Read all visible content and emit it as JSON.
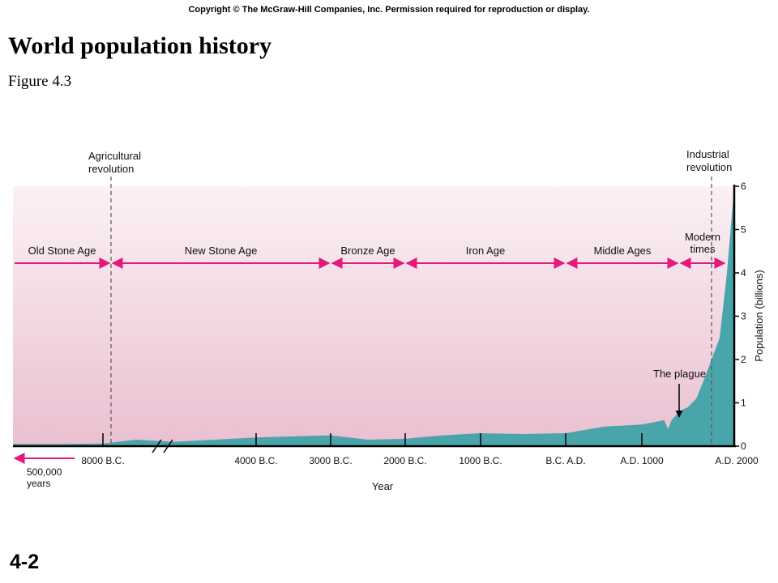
{
  "header": {
    "copyright": "Copyright © The McGraw-Hill Companies, Inc. Permission required for reproduction or display.",
    "title": "World population history",
    "subtitle": "Figure 4.3",
    "slide_number": "4-2"
  },
  "colors": {
    "area": "#4aa5ab",
    "arrow": "#e6187e",
    "band_top": "#fbf1f5",
    "band_bottom": "#eac0d1"
  },
  "chart_data": {
    "type": "area",
    "xlabel": "Year",
    "ylabel": "Population (billions)",
    "ylim": [
      0,
      6
    ],
    "y_ticks": [
      "0",
      "1",
      "2",
      "3",
      "4",
      "5",
      "6"
    ],
    "x_ticks": [
      {
        "label": "8000 B.C.",
        "year": -8000
      },
      {
        "label": "4000 B.C.",
        "year": -4000
      },
      {
        "label": "3000 B.C.",
        "year": -3000
      },
      {
        "label": "2000 B.C.",
        "year": -2000
      },
      {
        "label": "1000 B.C.",
        "year": -1000
      },
      {
        "label": "B.C. A.D.",
        "year": 0
      },
      {
        "label": "A.D. 1000",
        "year": 1000
      },
      {
        "label": "A.D. 2000",
        "year": 2000
      }
    ],
    "left_label": "500,000\nyears",
    "series": [
      {
        "points": [
          {
            "x": -10000,
            "y": 0.05
          },
          {
            "x": -9000,
            "y": 0.05
          },
          {
            "x": -8000,
            "y": 0.06
          },
          {
            "x": -7000,
            "y": 0.15
          },
          {
            "x": -6000,
            "y": 0.1
          },
          {
            "x": -5000,
            "y": 0.15
          },
          {
            "x": -4000,
            "y": 0.2
          },
          {
            "x": -3000,
            "y": 0.25
          },
          {
            "x": -2500,
            "y": 0.15
          },
          {
            "x": -2000,
            "y": 0.17
          },
          {
            "x": -1500,
            "y": 0.25
          },
          {
            "x": -1000,
            "y": 0.3
          },
          {
            "x": -500,
            "y": 0.28
          },
          {
            "x": 0,
            "y": 0.3
          },
          {
            "x": 500,
            "y": 0.45
          },
          {
            "x": 1000,
            "y": 0.5
          },
          {
            "x": 1300,
            "y": 0.6
          },
          {
            "x": 1350,
            "y": 0.4
          },
          {
            "x": 1400,
            "y": 0.6
          },
          {
            "x": 1500,
            "y": 0.8
          },
          {
            "x": 1600,
            "y": 0.9
          },
          {
            "x": 1700,
            "y": 1.1
          },
          {
            "x": 1800,
            "y": 1.6
          },
          {
            "x": 1900,
            "y": 2.5
          },
          {
            "x": 1950,
            "y": 4.0
          },
          {
            "x": 2000,
            "y": 6.0
          }
        ]
      }
    ],
    "annotations": {
      "agricultural": "Agricultural\nrevolution",
      "industrial": "Industrial\nrevolution",
      "plague": "The plague"
    },
    "eras": [
      {
        "label": "Old Stone Age",
        "start": "500,000 years",
        "end": -8000
      },
      {
        "label": "New Stone Age",
        "start": -8000,
        "end": -3000
      },
      {
        "label": "Bronze Age",
        "start": -3000,
        "end": -2000
      },
      {
        "label": "Iron Age",
        "start": -2000,
        "end": 0
      },
      {
        "label": "Middle Ages",
        "start": 0,
        "end": 1500
      },
      {
        "label": "Modern\ntimes",
        "start": 1500,
        "end": 2000
      }
    ]
  }
}
